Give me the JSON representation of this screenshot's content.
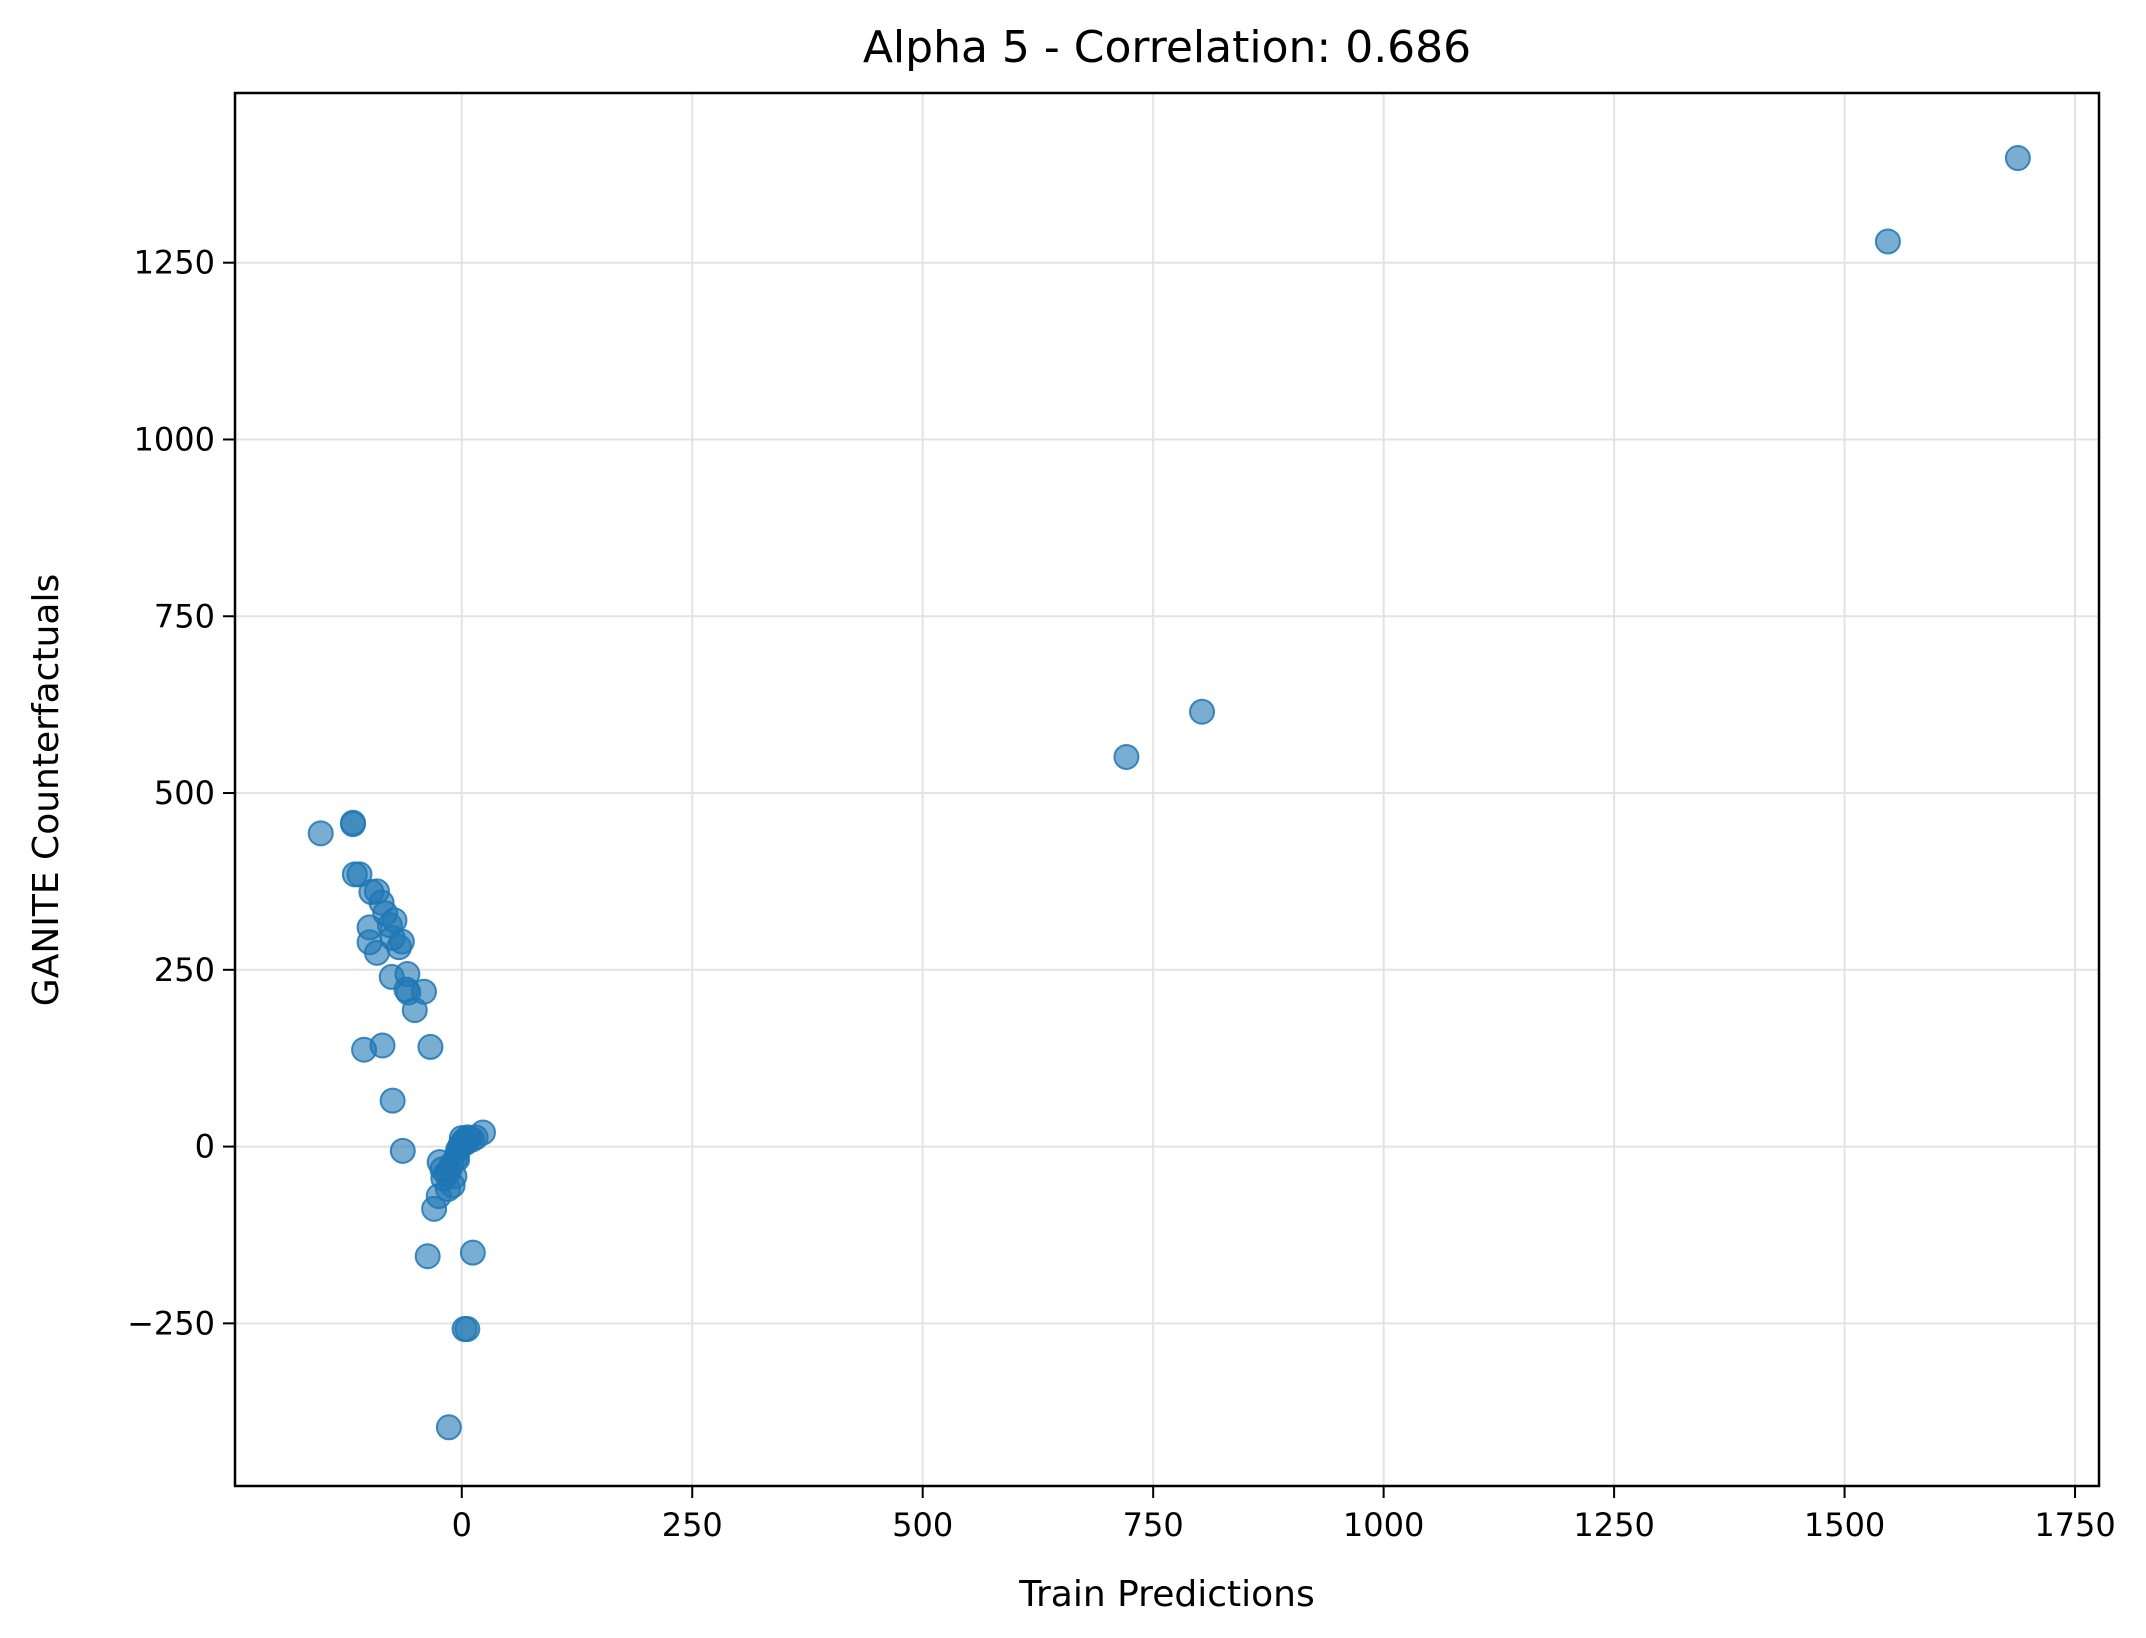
{
  "chart_data": {
    "type": "scatter",
    "title": "Alpha 5 - Correlation: 0.686",
    "xlabel": "Train Predictions",
    "ylabel": "GANITE Counterfactuals",
    "xlim": [
      -246,
      1776
    ],
    "ylim": [
      -480,
      1490
    ],
    "xticks": [
      0,
      250,
      500,
      750,
      1000,
      1250,
      1500,
      1750
    ],
    "xtick_labels": [
      "0",
      "250",
      "500",
      "750",
      "1000",
      "1250",
      "1500",
      "1750"
    ],
    "yticks": [
      -250,
      0,
      250,
      500,
      750,
      1000,
      1250
    ],
    "ytick_labels": [
      "−250",
      "0",
      "250",
      "500",
      "750",
      "1000",
      "1250"
    ],
    "grid": true,
    "marker_color": "#1f77b4",
    "marker_alpha": 0.6,
    "x": [
      1688,
      1547,
      803,
      721,
      -153,
      -118,
      -118,
      -116,
      -111,
      -98,
      -92,
      -87,
      -83,
      -78,
      -73,
      -65,
      -100,
      -100,
      -92,
      -75,
      -68,
      -59,
      -76,
      -60,
      -58,
      -41,
      -51,
      -106,
      -86,
      -34,
      -75,
      -64,
      -24,
      -21,
      -20,
      -17,
      -14,
      -11,
      -8,
      -6,
      -4,
      -2,
      0,
      2,
      4,
      6,
      8,
      11,
      15,
      23,
      -30,
      -25,
      -15,
      -10,
      -5,
      -1,
      1,
      -37,
      12,
      6,
      3,
      -14
    ],
    "y": [
      1398,
      1280,
      615,
      551,
      443,
      458,
      456,
      385,
      385,
      360,
      361,
      345,
      330,
      313,
      320,
      290,
      310,
      289,
      274,
      295,
      282,
      244,
      240,
      222,
      218,
      219,
      193,
      137,
      143,
      141,
      65,
      -6,
      -22,
      -32,
      -45,
      -38,
      -35,
      -25,
      -42,
      -15,
      -5,
      0,
      12,
      8,
      5,
      13,
      12,
      10,
      13,
      20,
      -88,
      -70,
      -60,
      -55,
      -18,
      2,
      5,
      -155,
      -150,
      -258,
      -258,
      -397
    ]
  }
}
